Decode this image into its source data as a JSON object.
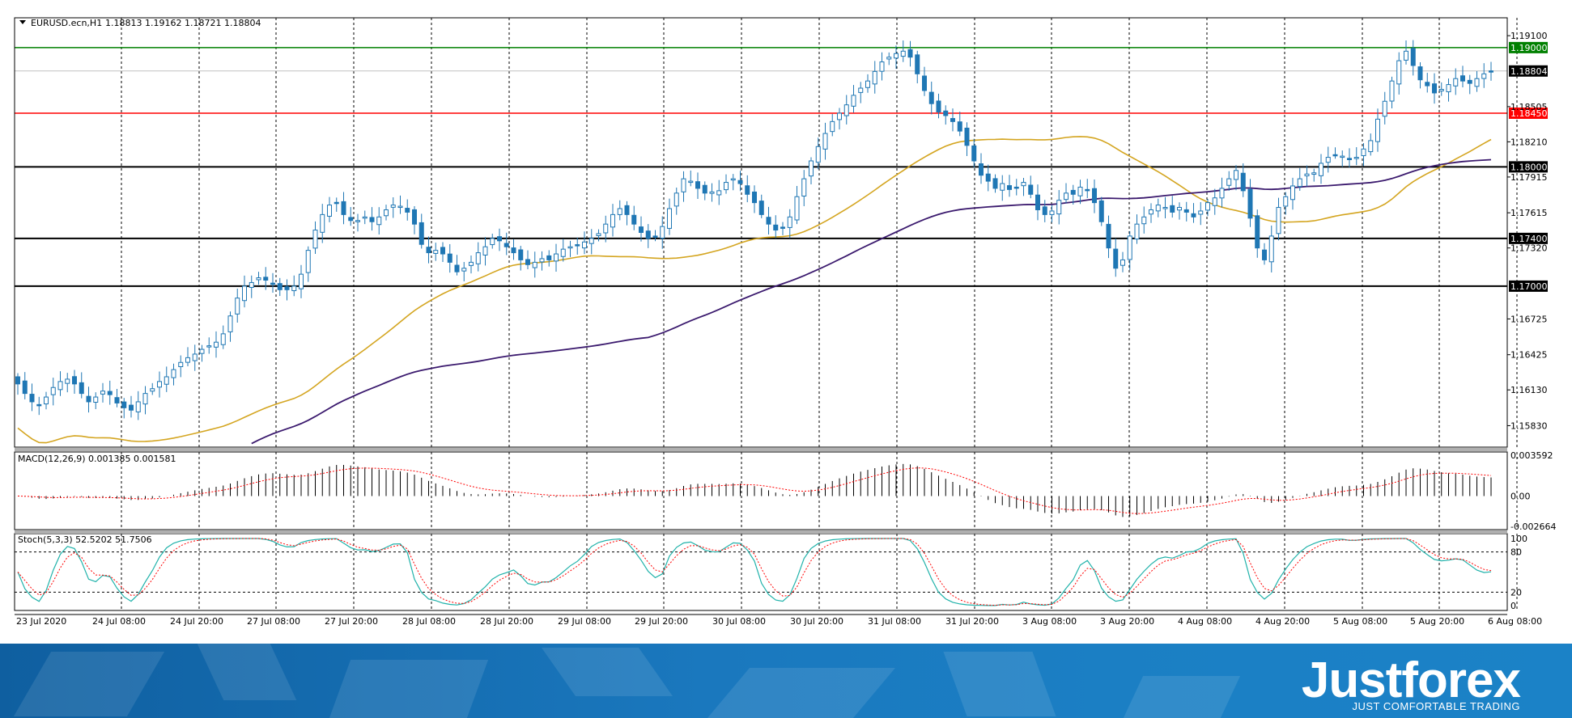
{
  "header": {
    "symbol_label": "EURUSD.ecn,H1",
    "ohlc_label": "1.18813 1.19162 1.18721 1.18804"
  },
  "indicators": {
    "macd_label": "MACD(12,26,9) 0.001385 0.001581",
    "stoch_label": "Stoch(5,3,3) 52.5202 51.7506"
  },
  "price_axis": {
    "ticks": [
      "1.19100",
      "1.18505",
      "1.18210",
      "1.17915",
      "1.17615",
      "1.17320",
      "1.16725",
      "1.16425",
      "1.16130",
      "1.15830"
    ],
    "current_price_label": "1.18804",
    "levels": [
      {
        "value": 1.19,
        "label": "1.19000",
        "color": "#008000"
      },
      {
        "value": 1.1845,
        "label": "1.18450",
        "color": "#ff0000"
      },
      {
        "value": 1.18,
        "label": "1.18000",
        "color": "#000000"
      },
      {
        "value": 1.174,
        "label": "1.17400",
        "color": "#000000"
      },
      {
        "value": 1.17,
        "label": "1.17000",
        "color": "#000000"
      }
    ]
  },
  "macd_axis": {
    "ticks": [
      "0.003592",
      "0.00",
      "-0.002664"
    ]
  },
  "stoch_axis": {
    "ticks": [
      "100",
      "80",
      "20",
      "0"
    ]
  },
  "time_axis": {
    "labels": [
      "23 Jul 2020",
      "24 Jul 08:00",
      "24 Jul 20:00",
      "27 Jul 08:00",
      "27 Jul 20:00",
      "28 Jul 08:00",
      "28 Jul 20:00",
      "29 Jul 08:00",
      "29 Jul 20:00",
      "30 Jul 08:00",
      "30 Jul 20:00",
      "31 Jul 08:00",
      "31 Jul 20:00",
      "3 Aug 08:00",
      "3 Aug 20:00",
      "4 Aug 08:00",
      "4 Aug 20:00",
      "5 Aug 08:00",
      "5 Aug 20:00",
      "6 Aug 08:00"
    ]
  },
  "branding": {
    "name": "Justforex",
    "tagline": "JUST COMFORTABLE TRADING"
  },
  "colors": {
    "candle_bull": "#1f77b4",
    "candle_bear": "#1f77b4",
    "ma_fast": "#d4a520",
    "ma_slow": "#3b1a6e",
    "macd_signal": "#ff0000",
    "stoch_main": "#20b2aa",
    "stoch_signal": "#ff0000",
    "grid": "#000000"
  },
  "chart_data": {
    "type": "candlestick",
    "symbol": "EURUSD.ecn",
    "timeframe": "H1",
    "ylim": [
      1.1565,
      1.1925
    ],
    "closes": [
      1.1618,
      1.161,
      1.1603,
      1.16,
      1.1607,
      1.1615,
      1.162,
      1.1622,
      1.1618,
      1.161,
      1.1603,
      1.1607,
      1.1612,
      1.1609,
      1.1602,
      1.1598,
      1.1596,
      1.1603,
      1.161,
      1.1614,
      1.162,
      1.1624,
      1.163,
      1.1636,
      1.164,
      1.1643,
      1.1647,
      1.165,
      1.1653,
      1.166,
      1.1675,
      1.169,
      1.17,
      1.1703,
      1.1707,
      1.1705,
      1.1702,
      1.1697,
      1.1697,
      1.17,
      1.171,
      1.173,
      1.1747,
      1.176,
      1.1768,
      1.177,
      1.176,
      1.1755,
      1.1755,
      1.1758,
      1.1754,
      1.1758,
      1.1764,
      1.1768,
      1.1767,
      1.1762,
      1.1752,
      1.1735,
      1.1728,
      1.173,
      1.1727,
      1.172,
      1.1712,
      1.1715,
      1.172,
      1.1728,
      1.1733,
      1.174,
      1.1738,
      1.1733,
      1.1728,
      1.1722,
      1.1718,
      1.172,
      1.1723,
      1.1722,
      1.1727,
      1.1731,
      1.1733,
      1.1734,
      1.1737,
      1.174,
      1.1744,
      1.1752,
      1.176,
      1.1765,
      1.176,
      1.1752,
      1.1745,
      1.174,
      1.1742,
      1.175,
      1.1765,
      1.1778,
      1.179,
      1.1788,
      1.1782,
      1.1778,
      1.1779,
      1.178,
      1.1787,
      1.179,
      1.1786,
      1.1777,
      1.177,
      1.176,
      1.1752,
      1.1747,
      1.1749,
      1.1758,
      1.1775,
      1.179,
      1.1805,
      1.1817,
      1.1828,
      1.1838,
      1.1845,
      1.1852,
      1.186,
      1.1866,
      1.1872,
      1.188,
      1.1888,
      1.1892,
      1.1895,
      1.1897,
      1.1892,
      1.1878,
      1.1864,
      1.1853,
      1.1846,
      1.1843,
      1.1838,
      1.183,
      1.1818,
      1.1805,
      1.1793,
      1.1788,
      1.1782,
      1.1786,
      1.1781,
      1.1783,
      1.1787,
      1.1777,
      1.1764,
      1.176,
      1.1763,
      1.1772,
      1.1778,
      1.1777,
      1.1783,
      1.178,
      1.177,
      1.1754,
      1.1732,
      1.1715,
      1.1722,
      1.1742,
      1.1752,
      1.1758,
      1.1764,
      1.1768,
      1.1766,
      1.1762,
      1.1766,
      1.1762,
      1.1758,
      1.1763,
      1.177,
      1.1774,
      1.1782,
      1.179,
      1.1797,
      1.178,
      1.1757,
      1.1732,
      1.1722,
      1.1742,
      1.1766,
      1.1775,
      1.1784,
      1.179,
      1.1794,
      1.1795,
      1.1803,
      1.1808,
      1.181,
      1.1809,
      1.1806,
      1.1808,
      1.1815,
      1.1822,
      1.184,
      1.1855,
      1.1872,
      1.1889,
      1.1897,
      1.1885,
      1.1873,
      1.1868,
      1.1862,
      1.1865,
      1.1869,
      1.1874,
      1.1872,
      1.187,
      1.1874,
      1.1878,
      1.188
    ],
    "opens_note": "",
    "ma_fast": {
      "from": 1.1581,
      "to": 1.1823
    },
    "ma_slow": {
      "from": 1.1555,
      "to": 1.1806
    },
    "macd_range": [
      -0.002664,
      0.003592
    ],
    "stoch_range": [
      0,
      100
    ]
  }
}
